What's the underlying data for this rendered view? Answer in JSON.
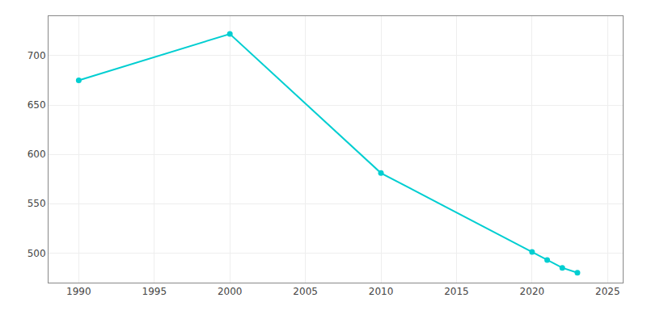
{
  "chart_data": {
    "type": "line",
    "x": [
      1990,
      2000,
      2010,
      2020,
      2021,
      2022,
      2023
    ],
    "values": [
      675,
      722,
      581,
      501,
      493,
      485,
      480
    ],
    "color": "#00CED1",
    "marker": "circle",
    "xlim": [
      1988,
      2026
    ],
    "ylim": [
      470,
      740
    ],
    "xticks": [
      1990,
      1995,
      2000,
      2005,
      2010,
      2015,
      2020,
      2025
    ],
    "yticks": [
      500,
      550,
      600,
      650,
      700
    ],
    "grid": true
  }
}
